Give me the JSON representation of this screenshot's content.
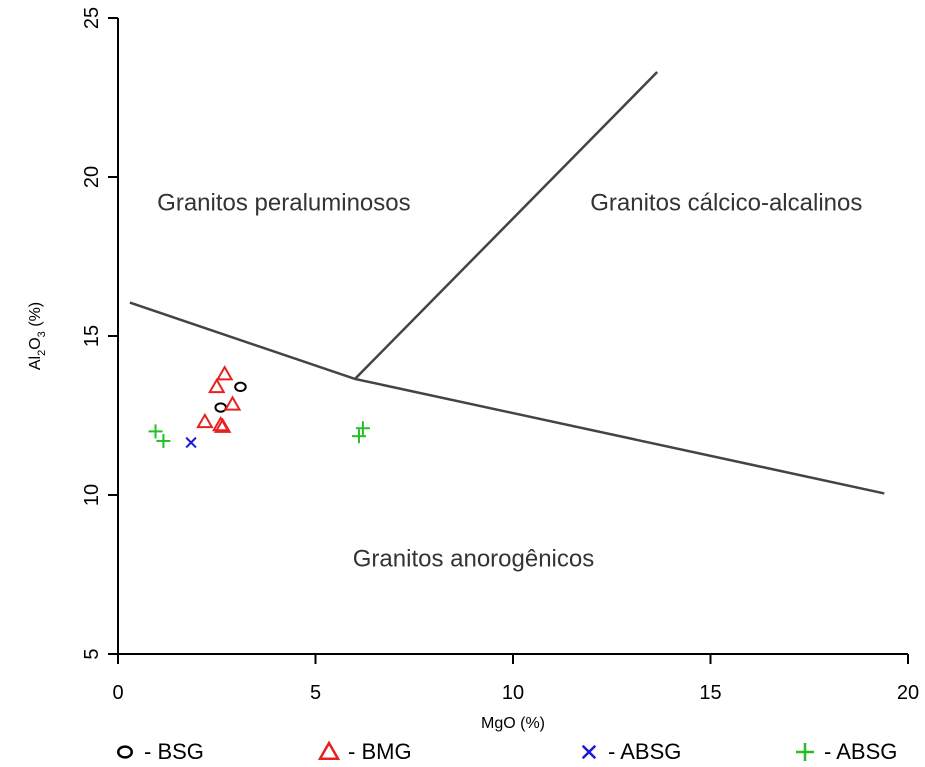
{
  "chart_data": {
    "type": "scatter",
    "title": "",
    "xlabel": "MgO (%)",
    "ylabel": {
      "prefix": "Al",
      "sub1": "2",
      "mid": "O",
      "sub2": "3",
      "suffix": "(%)"
    },
    "xlim": [
      0,
      20
    ],
    "ylim": [
      5,
      25
    ],
    "x_ticks": [
      0,
      5,
      10,
      15,
      20
    ],
    "y_ticks": [
      5,
      10,
      15,
      20,
      25
    ],
    "grid": false,
    "legend_position": "bottom",
    "series": [
      {
        "name": "BSG",
        "marker": "circle",
        "color": "#000000",
        "points": [
          [
            3.1,
            13.4
          ],
          [
            2.6,
            12.75
          ]
        ]
      },
      {
        "name": "BMG",
        "marker": "triangle",
        "color": "#e8201e",
        "points": [
          [
            2.7,
            13.8
          ],
          [
            2.5,
            13.4
          ],
          [
            2.9,
            12.85
          ],
          [
            2.2,
            12.3
          ],
          [
            2.6,
            12.2
          ],
          [
            2.65,
            12.15
          ]
        ]
      },
      {
        "name": "ABSG",
        "marker": "x",
        "color": "#1a1ad6",
        "points": [
          [
            1.85,
            11.65
          ]
        ]
      },
      {
        "name": "ABSG",
        "marker": "plus",
        "color": "#22c022",
        "points": [
          [
            0.95,
            12.0
          ],
          [
            1.15,
            11.7
          ],
          [
            6.1,
            11.85
          ],
          [
            6.2,
            12.1
          ]
        ]
      }
    ],
    "boundary_lines": [
      {
        "points": [
          [
            0.3,
            16.05
          ],
          [
            6.0,
            13.65
          ],
          [
            19.4,
            10.05
          ]
        ]
      },
      {
        "points": [
          [
            6.0,
            13.65
          ],
          [
            13.65,
            23.3
          ]
        ]
      }
    ],
    "region_labels": [
      {
        "text": "Granitos peraluminosos",
        "x": 4.2,
        "y": 19.2
      },
      {
        "text": "Granitos cálcico-alcalinos",
        "x": 15.4,
        "y": 19.2
      },
      {
        "text": "Granitos anorogênicos",
        "x": 9.0,
        "y": 8.0
      }
    ],
    "legend": [
      {
        "marker": "circle",
        "color": "#000000",
        "label": "- BSG"
      },
      {
        "marker": "triangle",
        "color": "#e8201e",
        "label": "- BMG"
      },
      {
        "marker": "x",
        "color": "#1a1ad6",
        "label": "- ABSG"
      },
      {
        "marker": "plus",
        "color": "#22c022",
        "label": "- ABSG"
      }
    ]
  }
}
